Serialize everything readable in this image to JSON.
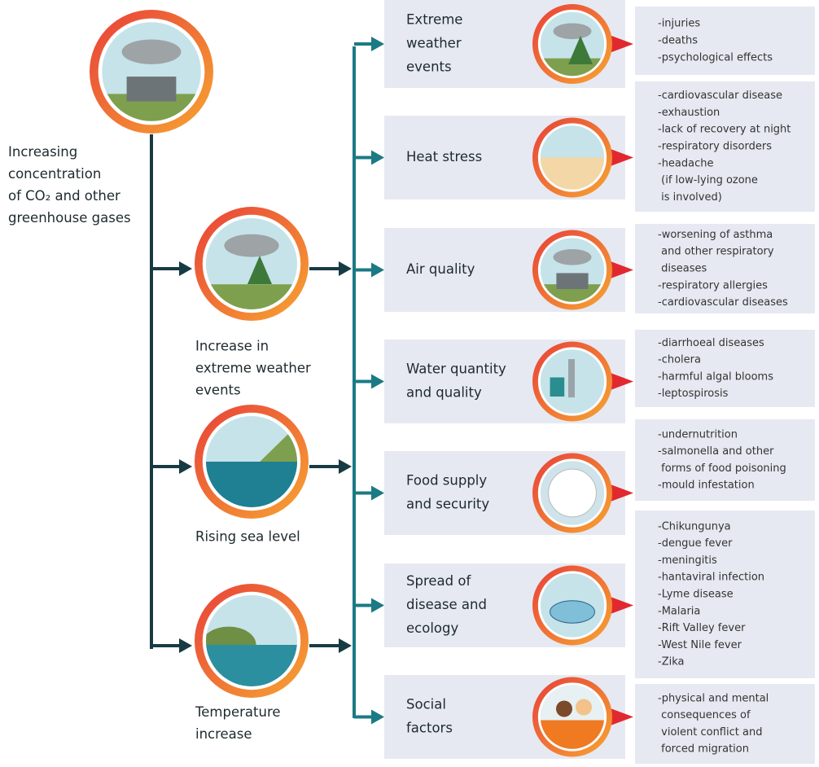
{
  "source": {
    "label_lines": [
      "Increasing",
      "concentration",
      "of CO₂ and other",
      "greenhouse gases"
    ]
  },
  "drivers": [
    {
      "label_lines": [
        "Increase in",
        "extreme weather",
        "events"
      ]
    },
    {
      "label_lines": [
        "Rising sea level"
      ]
    },
    {
      "label_lines": [
        "Temperature",
        "increase"
      ]
    }
  ],
  "impacts": [
    {
      "label_lines": [
        "Extreme",
        "weather",
        "events"
      ],
      "effects": [
        "-injuries",
        "-deaths",
        "-psychological effects"
      ]
    },
    {
      "label_lines": [
        "Heat stress"
      ],
      "effects": [
        "-cardiovascular disease",
        "-exhaustion",
        "-lack of recovery at night",
        "-respiratory disorders",
        "-headache",
        " (if low-lying ozone",
        " is involved)"
      ]
    },
    {
      "label_lines": [
        "Air quality"
      ],
      "effects": [
        "-worsening of asthma",
        " and other respiratory",
        " diseases",
        "-respiratory allergies",
        "-cardiovascular diseases"
      ]
    },
    {
      "label_lines": [
        "Water quantity",
        "and quality"
      ],
      "effects": [
        "-diarrhoeal diseases",
        "-cholera",
        "-harmful algal blooms",
        "-leptospirosis"
      ]
    },
    {
      "label_lines": [
        "Food supply",
        "and security"
      ],
      "effects": [
        "-undernutrition",
        "-salmonella and other",
        " forms of food poisoning",
        "-mould infestation"
      ]
    },
    {
      "label_lines": [
        "Spread of",
        "disease and",
        "ecology"
      ],
      "effects": [
        "-Chikungunya",
        "-dengue fever",
        "-meningitis",
        "-hantaviral infection",
        "-Lyme disease",
        "-Malaria",
        "-Rift Valley fever",
        "-West Nile fever",
        "-Zika"
      ]
    },
    {
      "label_lines": [
        "Social",
        "factors"
      ],
      "effects": [
        "-physical and mental",
        " consequences of",
        " violent conflict and",
        " forced migration"
      ]
    }
  ]
}
